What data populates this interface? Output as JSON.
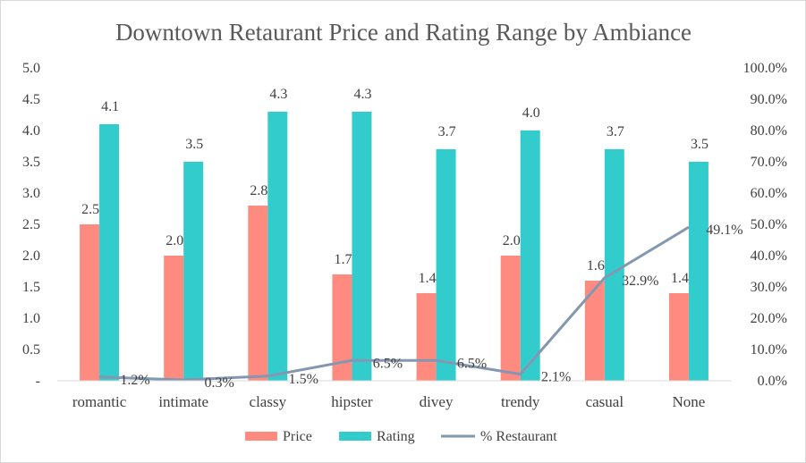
{
  "chart_data": {
    "type": "bar",
    "title": "Downtown Retaurant Price and Rating Range by Ambiance",
    "categories": [
      "romantic",
      "intimate",
      "classy",
      "hipster",
      "divey",
      "trendy",
      "casual",
      "None"
    ],
    "series": [
      {
        "name": "Price",
        "type": "bar",
        "axis": "left",
        "color": "#ff8a80",
        "values": [
          2.5,
          2.0,
          2.8,
          1.7,
          1.4,
          2.0,
          1.6,
          1.4
        ],
        "labels": [
          "2.5",
          "2.0",
          "2.8",
          "1.7",
          "1.4",
          "2.0",
          "1.6",
          "1.4"
        ]
      },
      {
        "name": "Rating",
        "type": "bar",
        "axis": "left",
        "color": "#33cccc",
        "values": [
          4.1,
          3.5,
          4.3,
          4.3,
          3.7,
          4.0,
          3.7,
          3.5
        ],
        "labels": [
          "4.1",
          "3.5",
          "4.3",
          "4.3",
          "3.7",
          "4.0",
          "3.7",
          "3.5"
        ]
      },
      {
        "name": "% Restaurant",
        "type": "line",
        "axis": "right",
        "color": "#8497b0",
        "values": [
          1.2,
          0.3,
          1.5,
          6.5,
          6.5,
          2.1,
          32.9,
          49.1
        ],
        "labels": [
          "1.2%",
          "0.3%",
          "1.5%",
          "6.5%",
          "6.5%",
          "2.1%",
          "32.9%",
          "49.1%"
        ]
      }
    ],
    "y_left": {
      "range": [
        0,
        5
      ],
      "ticks": [
        0,
        0.5,
        1,
        1.5,
        2,
        2.5,
        3,
        3.5,
        4,
        4.5,
        5
      ],
      "tick_labels": [
        "-",
        "0.5",
        "1.0",
        "1.5",
        "2.0",
        "2.5",
        "3.0",
        "3.5",
        "4.0",
        "4.5",
        "5.0"
      ]
    },
    "y_right": {
      "range": [
        0,
        100
      ],
      "ticks": [
        0,
        10,
        20,
        30,
        40,
        50,
        60,
        70,
        80,
        90,
        100
      ],
      "tick_labels": [
        "0.0%",
        "10.0%",
        "20.0%",
        "30.0%",
        "40.0%",
        "50.0%",
        "60.0%",
        "70.0%",
        "80.0%",
        "90.0%",
        "100.0%"
      ]
    },
    "grid": false,
    "legend": "bottom"
  }
}
